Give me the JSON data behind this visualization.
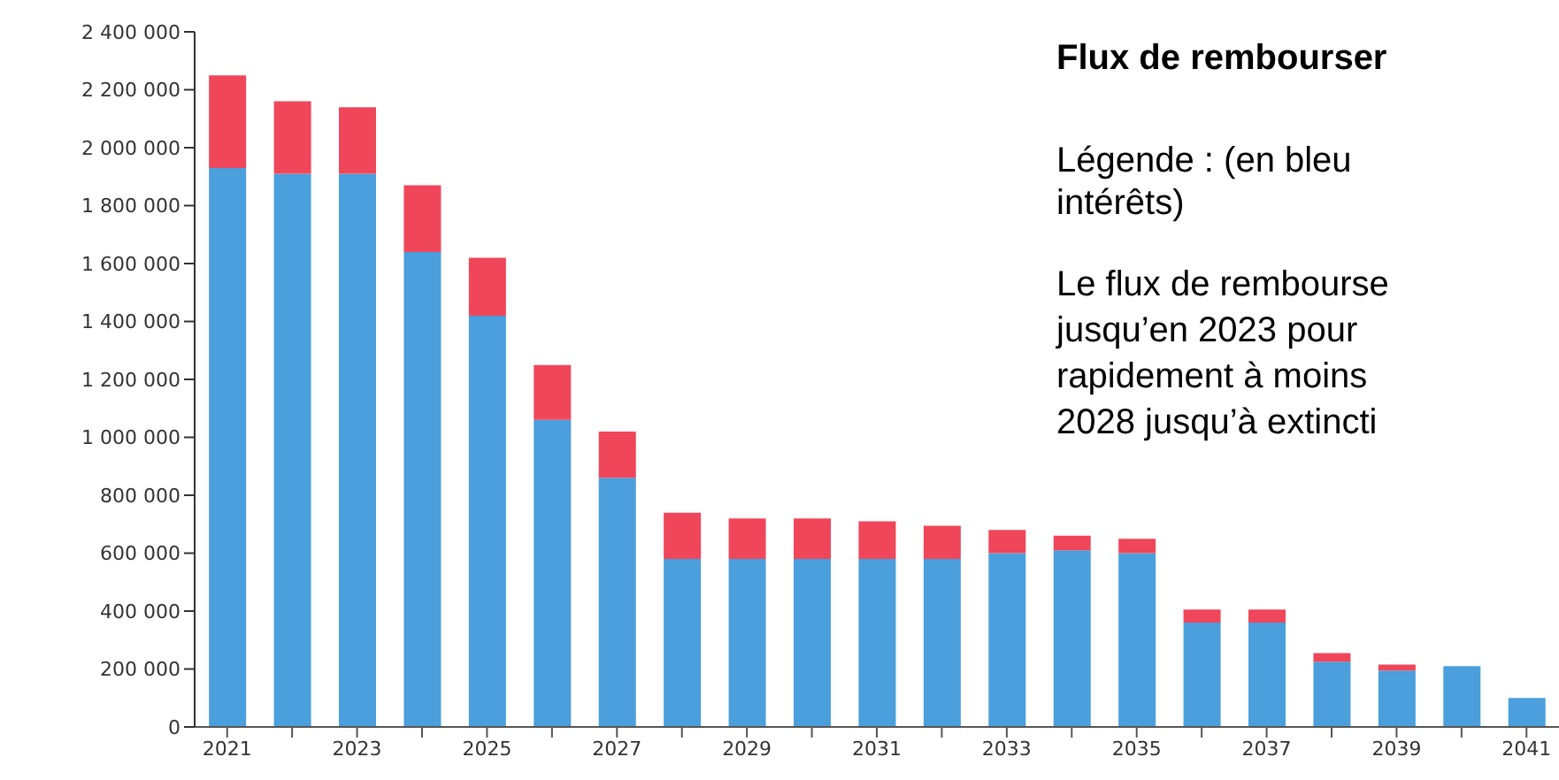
{
  "chart_data": {
    "type": "bar",
    "stacked": true,
    "title": "Flux de rembourser",
    "categories": [
      "2021",
      null,
      "2023",
      null,
      "2025",
      null,
      "2027",
      null,
      "2029",
      null,
      "2031",
      null,
      "2033",
      null,
      "2035",
      null,
      "2037",
      null,
      "2039",
      null,
      "2041"
    ],
    "series": [
      {
        "color": "#4a9fdc",
        "values": [
          1930000,
          1910000,
          1910000,
          1640000,
          1420000,
          1060000,
          860000,
          580000,
          580000,
          580000,
          580000,
          580000,
          600000,
          610000,
          600000,
          360000,
          360000,
          225000,
          195000,
          210000,
          100000
        ]
      },
      {
        "color": "#f0465a",
        "values": [
          320000,
          250000,
          230000,
          230000,
          200000,
          190000,
          160000,
          160000,
          140000,
          140000,
          130000,
          115000,
          80000,
          50000,
          50000,
          45000,
          45000,
          30000,
          20000,
          0,
          0
        ]
      }
    ],
    "ylim": [
      0,
      2400000
    ],
    "yticks": [
      {
        "value": 0,
        "label": "0"
      },
      {
        "value": 200000,
        "label": "200 000"
      },
      {
        "value": 400000,
        "label": "400 000"
      },
      {
        "value": 600000,
        "label": "600 000"
      },
      {
        "value": 800000,
        "label": "800 000"
      },
      {
        "value": 1000000,
        "label": "1 000 000"
      },
      {
        "value": 1200000,
        "label": "1 200 000"
      },
      {
        "value": 1400000,
        "label": "1 400 000"
      },
      {
        "value": 1600000,
        "label": "1 600 000"
      },
      {
        "value": 1800000,
        "label": "1 800 000"
      },
      {
        "value": 2000000,
        "label": "2 000 000"
      },
      {
        "value": 2200000,
        "label": "2 200 000"
      },
      {
        "value": 2400000,
        "label": "2 400 000"
      }
    ],
    "annotations": [
      "Légende : (en bleu",
      "intérêts)",
      "Le flux de rembourse",
      "jusqu’en 2023 pour",
      "rapidement à moins",
      "2028 jusqu’à extincti"
    ]
  }
}
